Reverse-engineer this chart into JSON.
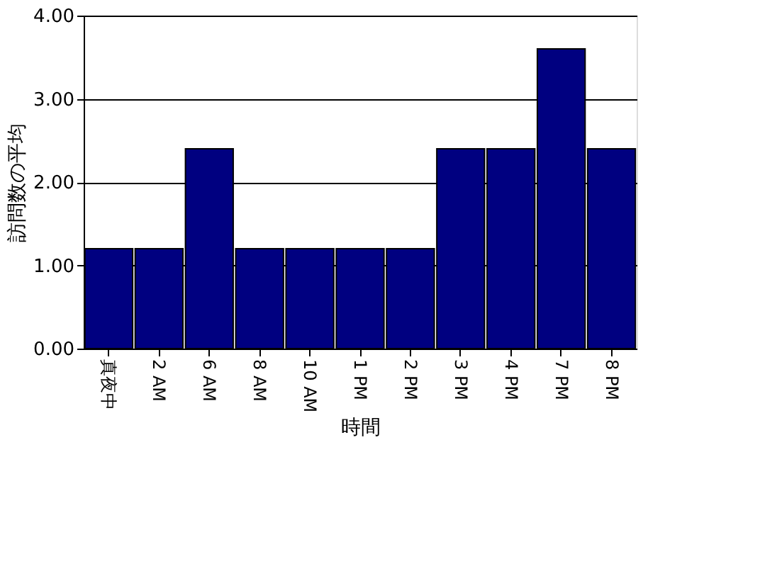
{
  "chart_data": {
    "type": "bar",
    "xlabel": "時間",
    "ylabel": "訪問数の平均",
    "categories": [
      "真夜中",
      "2 AM",
      "6 AM",
      "8 AM",
      "10 AM",
      "1 PM",
      "2 PM",
      "3 PM",
      "4 PM",
      "7 PM",
      "8 PM"
    ],
    "values": [
      1.2,
      1.2,
      2.4,
      1.2,
      1.2,
      1.2,
      1.2,
      2.4,
      2.4,
      3.6,
      2.4
    ],
    "color": "#000080",
    "ylim": [
      0,
      4
    ],
    "yticks": [
      {
        "value": 0,
        "label": "0.00"
      },
      {
        "value": 1,
        "label": "1.00"
      },
      {
        "value": 2,
        "label": "2.00"
      },
      {
        "value": 3,
        "label": "3.00"
      },
      {
        "value": 4,
        "label": "4.00"
      }
    ],
    "grid": "y"
  }
}
